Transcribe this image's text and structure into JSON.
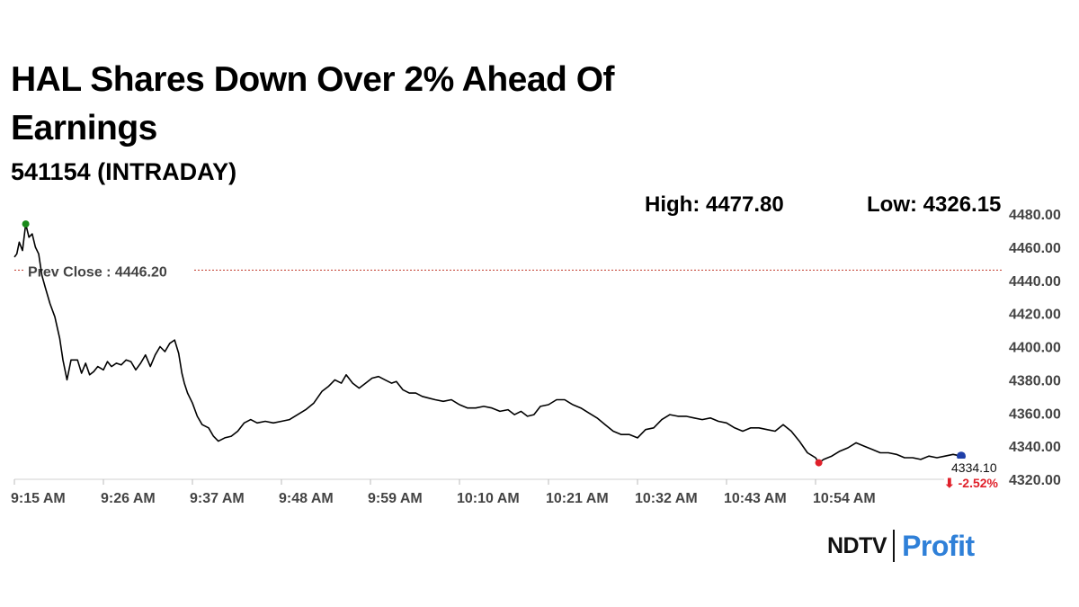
{
  "header": {
    "title": "HAL Shares Down Over 2% Ahead Of Earnings",
    "subtitle": "541154 (INTRADAY)",
    "high_label": "High: 4477.80",
    "low_label": "Low: 4326.15"
  },
  "brand": {
    "name_left": "NDTV",
    "name_right": "Profit",
    "color_right": "#2f80d8"
  },
  "chart_data": {
    "type": "line",
    "ylim": [
      4320,
      4480
    ],
    "yticks": [
      4480,
      4460,
      4440,
      4420,
      4400,
      4380,
      4360,
      4340,
      4320
    ],
    "ytick_labels": [
      "4480.00",
      "4460.00",
      "4440.00",
      "4420.00",
      "4400.00",
      "4380.00",
      "4360.00",
      "4340.00",
      "4320.00"
    ],
    "xlim": [
      0,
      122
    ],
    "xticks": [
      0,
      11,
      22,
      33,
      44,
      55,
      66,
      77,
      88,
      99
    ],
    "xtick_labels": [
      "9:15 AM",
      "9:26 AM",
      "9:37 AM",
      "9:48 AM",
      "9:59 AM",
      "10:10 AM",
      "10:21 AM",
      "10:32 AM",
      "10:43 AM",
      "10:54 AM"
    ],
    "prev_close": 4446.2,
    "prev_close_label": "Prev Close : 4446.20",
    "last_value_label": "4334.10",
    "change_label": "⬇ -2.52%",
    "high_point": [
      1.4,
      4474
    ],
    "low_point": [
      99.4,
      4330
    ],
    "colors": {
      "line": "#000000",
      "prev_close": "#c0392b",
      "high_marker": "#1a8a1a",
      "low_marker": "#e0202a",
      "last_marker": "#1f3fa8",
      "change": "#e0202a"
    },
    "series": [
      {
        "points": [
          [
            0.0,
            4454
          ],
          [
            0.3,
            4456
          ],
          [
            0.6,
            4463
          ],
          [
            1.0,
            4458
          ],
          [
            1.4,
            4474
          ],
          [
            1.8,
            4466
          ],
          [
            2.2,
            4468
          ],
          [
            2.6,
            4460
          ],
          [
            3.0,
            4456
          ],
          [
            3.4,
            4443
          ],
          [
            3.8,
            4436
          ],
          [
            4.4,
            4426
          ],
          [
            5.0,
            4418
          ],
          [
            5.6,
            4405
          ],
          [
            6.0,
            4392
          ],
          [
            6.5,
            4380
          ],
          [
            7.0,
            4392
          ],
          [
            7.8,
            4392
          ],
          [
            8.3,
            4384
          ],
          [
            8.8,
            4390
          ],
          [
            9.3,
            4383
          ],
          [
            9.8,
            4385
          ],
          [
            10.3,
            4388
          ],
          [
            11.0,
            4386
          ],
          [
            11.5,
            4391
          ],
          [
            12.0,
            4388
          ],
          [
            12.6,
            4390
          ],
          [
            13.2,
            4389
          ],
          [
            13.8,
            4392
          ],
          [
            14.4,
            4391
          ],
          [
            15.0,
            4386
          ],
          [
            15.6,
            4390
          ],
          [
            16.2,
            4395
          ],
          [
            16.8,
            4388
          ],
          [
            17.4,
            4395
          ],
          [
            18.0,
            4400
          ],
          [
            18.6,
            4397
          ],
          [
            19.2,
            4402
          ],
          [
            19.8,
            4404
          ],
          [
            20.3,
            4396
          ],
          [
            20.7,
            4384
          ],
          [
            21.0,
            4378
          ],
          [
            21.4,
            4372
          ],
          [
            22.0,
            4366
          ],
          [
            22.6,
            4358
          ],
          [
            23.2,
            4353
          ],
          [
            24.0,
            4351
          ],
          [
            24.6,
            4346
          ],
          [
            25.2,
            4343
          ],
          [
            26.0,
            4345
          ],
          [
            26.8,
            4346
          ],
          [
            27.6,
            4349
          ],
          [
            28.4,
            4354
          ],
          [
            29.2,
            4356
          ],
          [
            30.0,
            4354
          ],
          [
            31.0,
            4355
          ],
          [
            32.0,
            4354
          ],
          [
            33.0,
            4355
          ],
          [
            34.0,
            4356
          ],
          [
            35.0,
            4359
          ],
          [
            36.0,
            4362
          ],
          [
            37.0,
            4366
          ],
          [
            38.0,
            4373
          ],
          [
            38.8,
            4376
          ],
          [
            39.6,
            4380
          ],
          [
            40.4,
            4378
          ],
          [
            41.0,
            4383
          ],
          [
            41.8,
            4378
          ],
          [
            42.6,
            4375
          ],
          [
            43.4,
            4378
          ],
          [
            44.2,
            4381
          ],
          [
            45.0,
            4382
          ],
          [
            45.8,
            4380
          ],
          [
            46.6,
            4378
          ],
          [
            47.2,
            4379
          ],
          [
            48.0,
            4374
          ],
          [
            48.8,
            4372
          ],
          [
            49.6,
            4372
          ],
          [
            50.4,
            4370
          ],
          [
            51.2,
            4369
          ],
          [
            52.0,
            4368
          ],
          [
            53.0,
            4367
          ],
          [
            54.0,
            4368
          ],
          [
            55.0,
            4365
          ],
          [
            56.0,
            4363
          ],
          [
            57.0,
            4363
          ],
          [
            58.0,
            4364
          ],
          [
            59.0,
            4363
          ],
          [
            60.0,
            4361
          ],
          [
            61.0,
            4362
          ],
          [
            61.8,
            4359
          ],
          [
            62.6,
            4361
          ],
          [
            63.4,
            4358
          ],
          [
            64.2,
            4359
          ],
          [
            65.0,
            4364
          ],
          [
            66.0,
            4365
          ],
          [
            67.0,
            4368
          ],
          [
            68.0,
            4368
          ],
          [
            69.0,
            4365
          ],
          [
            70.0,
            4363
          ],
          [
            71.0,
            4360
          ],
          [
            72.0,
            4357
          ],
          [
            73.0,
            4353
          ],
          [
            74.0,
            4349
          ],
          [
            75.0,
            4347
          ],
          [
            76.0,
            4347
          ],
          [
            77.0,
            4345
          ],
          [
            78.0,
            4350
          ],
          [
            79.0,
            4351
          ],
          [
            80.0,
            4356
          ],
          [
            81.0,
            4359
          ],
          [
            82.0,
            4358
          ],
          [
            83.0,
            4358
          ],
          [
            84.0,
            4357
          ],
          [
            85.0,
            4356
          ],
          [
            86.0,
            4357
          ],
          [
            87.0,
            4355
          ],
          [
            88.0,
            4354
          ],
          [
            89.0,
            4351
          ],
          [
            90.0,
            4349
          ],
          [
            91.0,
            4351
          ],
          [
            92.0,
            4351
          ],
          [
            93.0,
            4350
          ],
          [
            94.0,
            4349
          ],
          [
            95.0,
            4353
          ],
          [
            96.0,
            4349
          ],
          [
            97.0,
            4343
          ],
          [
            98.0,
            4336
          ],
          [
            99.0,
            4333
          ],
          [
            99.4,
            4330
          ],
          [
            100.0,
            4332
          ],
          [
            101.0,
            4334
          ],
          [
            102.0,
            4337
          ],
          [
            103.0,
            4339
          ],
          [
            104.0,
            4342
          ],
          [
            105.0,
            4340
          ],
          [
            106.0,
            4338
          ],
          [
            107.0,
            4336
          ],
          [
            108.0,
            4336
          ],
          [
            109.0,
            4335
          ],
          [
            110.0,
            4333
          ],
          [
            111.0,
            4333
          ],
          [
            112.0,
            4332
          ],
          [
            113.0,
            4334
          ],
          [
            114.0,
            4333
          ],
          [
            115.0,
            4334
          ],
          [
            116.0,
            4335
          ],
          [
            117.0,
            4334
          ]
        ]
      }
    ]
  }
}
